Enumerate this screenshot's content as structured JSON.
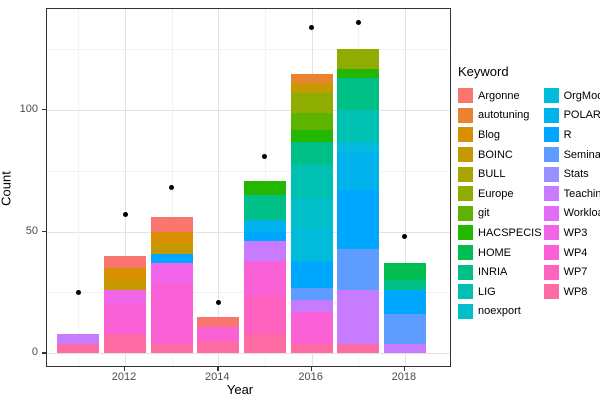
{
  "chart_data": {
    "type": "bar",
    "subtype": "stacked-bars-with-point-overlay",
    "title": "",
    "xlabel": "Year",
    "ylabel": "Count",
    "legend_title": "Keyword",
    "legend_position": "right",
    "grid": true,
    "ylim": [
      0,
      140
    ],
    "y_ticks": [
      0,
      50,
      100
    ],
    "y_minor_ticks": [
      25,
      75,
      125
    ],
    "x_ticks": [
      2012,
      2014,
      2016,
      2018
    ],
    "x_tick_labels": [
      "2012",
      "2014",
      "2016",
      "2018"
    ],
    "y_tick_labels": [
      "0",
      "50",
      "100"
    ],
    "categories": [
      2011,
      2012,
      2013,
      2014,
      2015,
      2016,
      2017,
      2018
    ],
    "keywords": [
      {
        "label": "Argonne",
        "color": "#F8766D"
      },
      {
        "label": "autotuning",
        "color": "#EA8331"
      },
      {
        "label": "Blog",
        "color": "#D89000"
      },
      {
        "label": "BOINC",
        "color": "#C49A00"
      },
      {
        "label": "BULL",
        "color": "#A9A400"
      },
      {
        "label": "Europe",
        "color": "#8FAC00"
      },
      {
        "label": "git",
        "color": "#5EB300"
      },
      {
        "label": "HACSPECIS",
        "color": "#24B700"
      },
      {
        "label": "HOME",
        "color": "#00BC51"
      },
      {
        "label": "INRIA",
        "color": "#00C087"
      },
      {
        "label": "LIG",
        "color": "#00C0B2"
      },
      {
        "label": "noexport",
        "color": "#00BFC8"
      },
      {
        "label": "OrgMode",
        "color": "#00BBDA"
      },
      {
        "label": "POLARIS",
        "color": "#00B3EC"
      },
      {
        "label": "R",
        "color": "#00A7FF"
      },
      {
        "label": "Seminar",
        "color": "#5E9DFF"
      },
      {
        "label": "Stats",
        "color": "#9792FF"
      },
      {
        "label": "Teaching",
        "color": "#C77CFF"
      },
      {
        "label": "Workload",
        "color": "#E26EF7"
      },
      {
        "label": "WP3",
        "color": "#F166E8"
      },
      {
        "label": "WP4",
        "color": "#FB61D7"
      },
      {
        "label": "WP7",
        "color": "#FF62BF"
      },
      {
        "label": "WP8",
        "color": "#FF6BA3"
      }
    ],
    "bars": [
      {
        "year": 2011,
        "total": 8,
        "segments_bottom_to_top": [
          {
            "keyword": "WP8",
            "value": 4
          },
          {
            "keyword": "Teaching",
            "value": 4
          }
        ]
      },
      {
        "year": 2012,
        "total": 40,
        "segments_bottom_to_top": [
          {
            "keyword": "WP8",
            "value": 8
          },
          {
            "keyword": "WP4",
            "value": 12
          },
          {
            "keyword": "WP3",
            "value": 6
          },
          {
            "keyword": "BOINC",
            "value": 4
          },
          {
            "keyword": "Blog",
            "value": 5
          },
          {
            "keyword": "Argonne",
            "value": 5
          }
        ]
      },
      {
        "year": 2013,
        "total": 56,
        "segments_bottom_to_top": [
          {
            "keyword": "WP8",
            "value": 4
          },
          {
            "keyword": "WP4",
            "value": 25
          },
          {
            "keyword": "WP3",
            "value": 8
          },
          {
            "keyword": "R",
            "value": 4
          },
          {
            "keyword": "BOINC",
            "value": 4
          },
          {
            "keyword": "Blog",
            "value": 5
          },
          {
            "keyword": "Argonne",
            "value": 6
          }
        ]
      },
      {
        "year": 2014,
        "total": 15,
        "segments_bottom_to_top": [
          {
            "keyword": "WP8",
            "value": 5
          },
          {
            "keyword": "WP4",
            "value": 6
          },
          {
            "keyword": "Argonne",
            "value": 4
          }
        ]
      },
      {
        "year": 2015,
        "total": 71,
        "segments_bottom_to_top": [
          {
            "keyword": "WP8",
            "value": 8
          },
          {
            "keyword": "WP7",
            "value": 16
          },
          {
            "keyword": "WP4",
            "value": 14
          },
          {
            "keyword": "Teaching",
            "value": 8
          },
          {
            "keyword": "R",
            "value": 4
          },
          {
            "keyword": "POLARIS",
            "value": 5
          },
          {
            "keyword": "INRIA",
            "value": 10
          },
          {
            "keyword": "HACSPECIS",
            "value": 6
          }
        ]
      },
      {
        "year": 2016,
        "total": 115,
        "segments_bottom_to_top": [
          {
            "keyword": "WP8",
            "value": 4
          },
          {
            "keyword": "WP4",
            "value": 13
          },
          {
            "keyword": "Teaching",
            "value": 5
          },
          {
            "keyword": "Seminar",
            "value": 5
          },
          {
            "keyword": "R",
            "value": 11
          },
          {
            "keyword": "OrgMode",
            "value": 13
          },
          {
            "keyword": "noexport",
            "value": 13
          },
          {
            "keyword": "LIG",
            "value": 14
          },
          {
            "keyword": "INRIA",
            "value": 9
          },
          {
            "keyword": "HACSPECIS",
            "value": 5
          },
          {
            "keyword": "git",
            "value": 7
          },
          {
            "keyword": "Europe",
            "value": 8
          },
          {
            "keyword": "BOINC",
            "value": 4
          },
          {
            "keyword": "autotuning",
            "value": 4
          }
        ]
      },
      {
        "year": 2017,
        "total": 125,
        "segments_bottom_to_top": [
          {
            "keyword": "WP8",
            "value": 4
          },
          {
            "keyword": "Teaching",
            "value": 22
          },
          {
            "keyword": "Seminar",
            "value": 17
          },
          {
            "keyword": "R",
            "value": 24
          },
          {
            "keyword": "POLARIS",
            "value": 16
          },
          {
            "keyword": "OrgMode",
            "value": 4
          },
          {
            "keyword": "LIG",
            "value": 13
          },
          {
            "keyword": "INRIA",
            "value": 13
          },
          {
            "keyword": "HACSPECIS",
            "value": 4
          },
          {
            "keyword": "Europe",
            "value": 8
          }
        ]
      },
      {
        "year": 2018,
        "total": 37,
        "segments_bottom_to_top": [
          {
            "keyword": "Teaching",
            "value": 4
          },
          {
            "keyword": "Seminar",
            "value": 12
          },
          {
            "keyword": "R",
            "value": 10
          },
          {
            "keyword": "INRIA",
            "value": 4
          },
          {
            "keyword": "HOME",
            "value": 7
          }
        ]
      }
    ],
    "points": [
      {
        "year": 2011,
        "value": 25
      },
      {
        "year": 2012,
        "value": 57
      },
      {
        "year": 2013,
        "value": 68
      },
      {
        "year": 2014,
        "value": 21
      },
      {
        "year": 2015,
        "value": 81
      },
      {
        "year": 2016,
        "value": 134
      },
      {
        "year": 2017,
        "value": 136
      },
      {
        "year": 2018,
        "value": 48
      }
    ]
  }
}
